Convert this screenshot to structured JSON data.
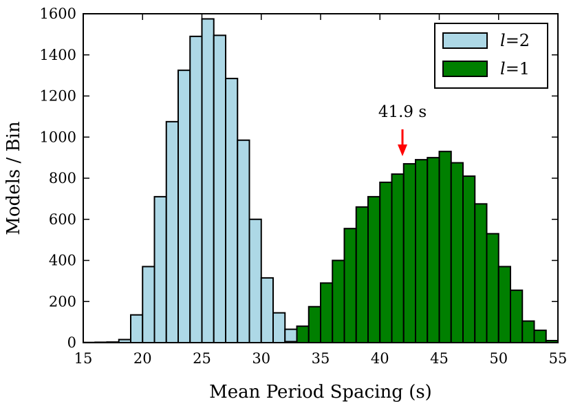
{
  "chart_data": {
    "type": "bar",
    "title": "",
    "xlabel": "Mean Period Spacing (s)",
    "ylabel": "Models / Bin",
    "xlim": [
      15,
      55
    ],
    "ylim": [
      0,
      1600
    ],
    "xticks": [
      "15",
      "20",
      "25",
      "30",
      "35",
      "40",
      "45",
      "50",
      "55"
    ],
    "yticks": [
      "0",
      "200",
      "400",
      "600",
      "800",
      "1000",
      "1200",
      "1400",
      "1600"
    ],
    "bin_width": 1,
    "legend_position": "top-right",
    "series": [
      {
        "name": "l = 2",
        "label_var": "l",
        "label_eq": "=2",
        "color": "#add8e6",
        "edge_color": "#000000",
        "bin_starts": [
          15,
          16,
          17,
          18,
          19,
          20,
          21,
          22,
          23,
          24,
          25,
          26,
          27,
          28,
          29,
          30,
          31,
          32,
          33
        ],
        "values": [
          1,
          2,
          3,
          15,
          135,
          370,
          710,
          1075,
          1325,
          1490,
          1575,
          1495,
          1285,
          985,
          600,
          315,
          145,
          65,
          10
        ]
      },
      {
        "name": "l = 1",
        "label_var": "l",
        "label_eq": "=1",
        "color": "#007f00",
        "edge_color": "#000000",
        "bin_starts": [
          32,
          33,
          34,
          35,
          36,
          37,
          38,
          39,
          40,
          41,
          42,
          43,
          44,
          45,
          46,
          47,
          48,
          49,
          50,
          51,
          52,
          53,
          54
        ],
        "values": [
          5,
          80,
          175,
          290,
          400,
          555,
          660,
          710,
          780,
          820,
          870,
          890,
          900,
          930,
          875,
          810,
          675,
          530,
          370,
          255,
          105,
          60,
          10
        ]
      }
    ],
    "annotations": [
      {
        "text": "41.9 s",
        "x": 41.9,
        "arrow": "down",
        "color": "#ff0000"
      }
    ]
  }
}
